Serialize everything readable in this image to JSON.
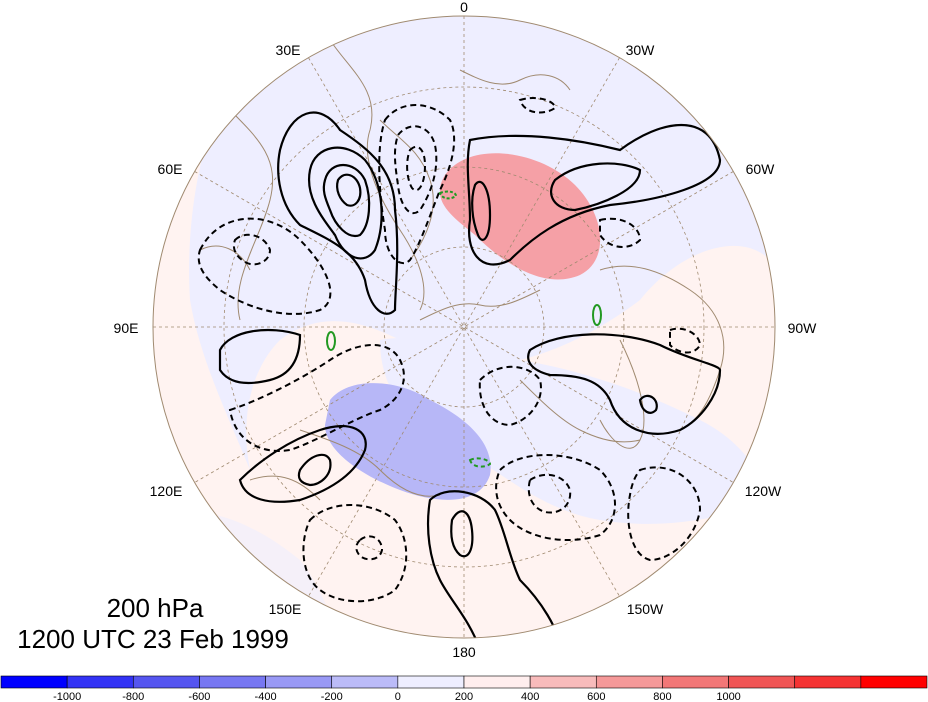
{
  "map": {
    "projection": "north-polar-stereographic",
    "longitude_labels": {
      "top": "0",
      "top_right_1": "30W",
      "top_right_2": "60W",
      "right": "90W",
      "bottom_right_1": "120W",
      "bottom_right_2": "150W",
      "bottom": "180",
      "bottom_left_2": "150E",
      "bottom_left_1": "120E",
      "left": "90E",
      "top_left_2": "60E",
      "top_left_1": "30E"
    },
    "title": {
      "line1": "200 hPa",
      "line2": "1200 UTC 23 Feb 1999"
    },
    "colors": {
      "ocean_bg_neg": "#eeeeff",
      "land_outline": "#a08a70",
      "grid": "#a08a70",
      "positive_anomaly": "#f5a0a6",
      "negative_anomaly": "#b7b7f7",
      "weak_positive": "#fff1f0",
      "contour": "#000000",
      "green_contour": "#229922"
    }
  },
  "colorbar": {
    "colors": [
      "#0000ff",
      "#3333f5",
      "#5555f0",
      "#7777f2",
      "#9999f5",
      "#bbbbf8",
      "#eeeeff",
      "#ffeeee",
      "#f8bbbb",
      "#f59999",
      "#f27777",
      "#f05555",
      "#f53333",
      "#ff0000"
    ],
    "labels": [
      "-1000",
      "-800",
      "-600",
      "-400",
      "-200",
      "0",
      "200",
      "400",
      "600",
      "800",
      "1000"
    ]
  }
}
